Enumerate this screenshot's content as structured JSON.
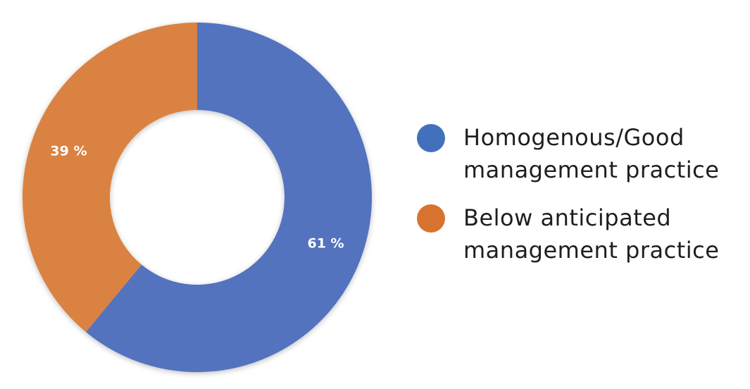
{
  "chart_data": {
    "type": "pie",
    "variant": "donut",
    "title": "",
    "slices": [
      {
        "name": "Homogenous/Good management practice",
        "value": 61,
        "label": "61 %",
        "color": "#5273BF"
      },
      {
        "name": "Below anticipated management practice",
        "value": 39,
        "label": "39 %",
        "color": "#DA8242"
      }
    ],
    "legend": {
      "placement": "right",
      "entries": [
        {
          "line1": "Homogenous/Good",
          "line2": "management practice",
          "color": "#4270BC"
        },
        {
          "line1": "Below anticipated",
          "line2": "management practice",
          "color": "#D8732F"
        }
      ]
    }
  }
}
